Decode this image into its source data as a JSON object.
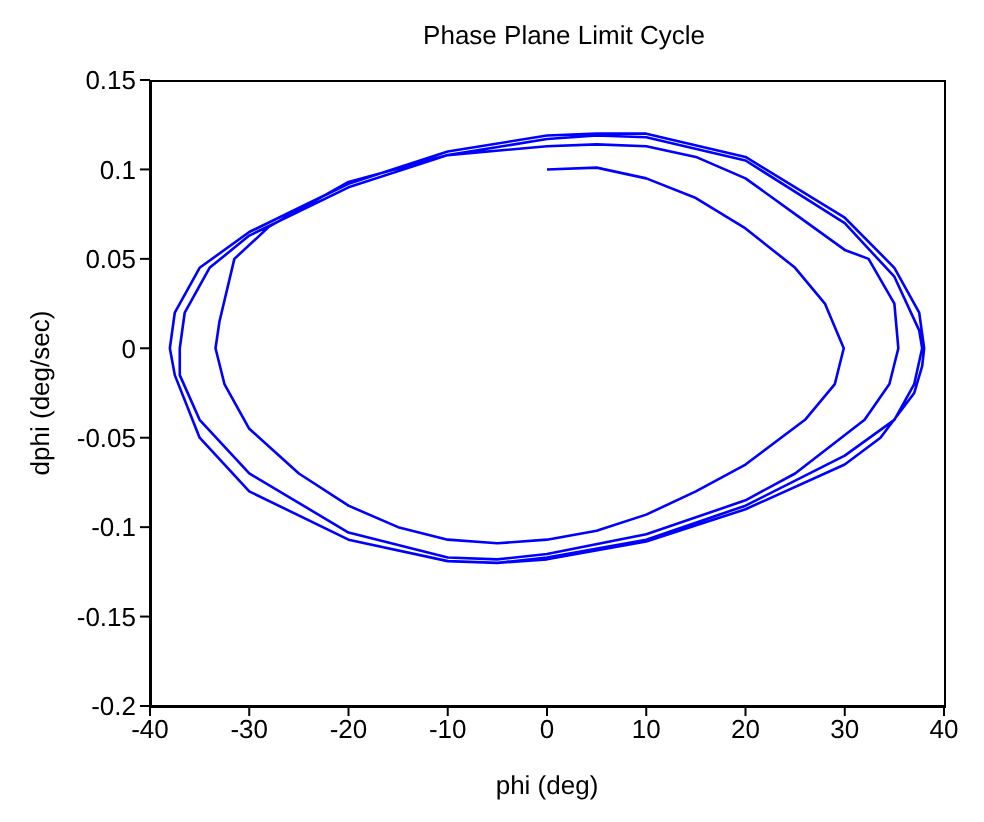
{
  "chart_data": {
    "type": "line",
    "title": "Phase Plane Limit Cycle",
    "xlabel": "phi (deg)",
    "ylabel": "dphi (deg/sec)",
    "xlim": [
      -40,
      40
    ],
    "xticks": [
      -40,
      -30,
      -20,
      -10,
      0,
      10,
      20,
      30,
      40
    ],
    "ylim": [
      -0.2,
      0.15
    ],
    "yticks": [
      -0.2,
      -0.15,
      -0.1,
      -0.05,
      0,
      0.05,
      0.1,
      0.15
    ],
    "grid": false,
    "legend": false,
    "marker": "none",
    "line_style": "solid",
    "series": [
      {
        "color": "#0000ff",
        "x": [
          0,
          5,
          10,
          15,
          20,
          25,
          28,
          29.9,
          29,
          26,
          20,
          15,
          10,
          5,
          0,
          -5,
          -10,
          -15,
          -20,
          -25,
          -30,
          -32.5,
          -33.4,
          -33,
          -31.5,
          -28,
          -20,
          -10,
          0,
          5,
          10,
          15,
          20,
          25,
          30,
          32.4,
          35,
          35.4,
          34.5,
          32,
          25,
          20,
          10,
          0,
          -5,
          -10,
          -20,
          -30,
          -35,
          -37,
          -37,
          -36.5,
          -34,
          -30,
          -20,
          -10,
          0,
          5,
          10,
          20,
          30,
          35,
          37.5,
          37.8,
          37,
          35,
          30,
          20,
          10,
          0,
          -5,
          -10,
          -20,
          -30,
          -35,
          -37.5,
          -38,
          -37.5,
          -35,
          -30,
          -20,
          -10,
          0,
          5,
          10,
          20,
          30,
          35,
          37.5,
          38,
          37.8,
          37,
          33.6,
          30,
          20,
          10,
          0,
          -5
        ],
        "values": [
          0.1,
          0.101,
          0.095,
          0.084,
          0.067,
          0.045,
          0.025,
          0,
          -0.02,
          -0.04,
          -0.065,
          -0.08,
          -0.093,
          -0.102,
          -0.107,
          -0.109,
          -0.107,
          -0.1,
          -0.088,
          -0.07,
          -0.045,
          -0.02,
          0,
          0.015,
          0.05,
          0.068,
          0.093,
          0.108,
          0.113,
          0.114,
          0.113,
          0.107,
          0.095,
          0.075,
          0.055,
          0.05,
          0.025,
          0,
          -0.02,
          -0.04,
          -0.07,
          -0.085,
          -0.104,
          -0.115,
          -0.118,
          -0.117,
          -0.103,
          -0.07,
          -0.04,
          -0.015,
          0,
          0.02,
          0.045,
          0.063,
          0.09,
          0.108,
          0.117,
          0.119,
          0.118,
          0.105,
          0.07,
          0.04,
          0.01,
          0,
          -0.02,
          -0.04,
          -0.06,
          -0.088,
          -0.107,
          -0.117,
          -0.12,
          -0.119,
          -0.107,
          -0.08,
          -0.05,
          -0.015,
          0,
          0.02,
          0.045,
          0.065,
          0.092,
          0.11,
          0.119,
          0.12,
          0.12,
          0.107,
          0.073,
          0.045,
          0.02,
          0,
          -0.01,
          -0.025,
          -0.05,
          -0.065,
          -0.09,
          -0.108,
          -0.118,
          -0.12
        ]
      }
    ]
  }
}
